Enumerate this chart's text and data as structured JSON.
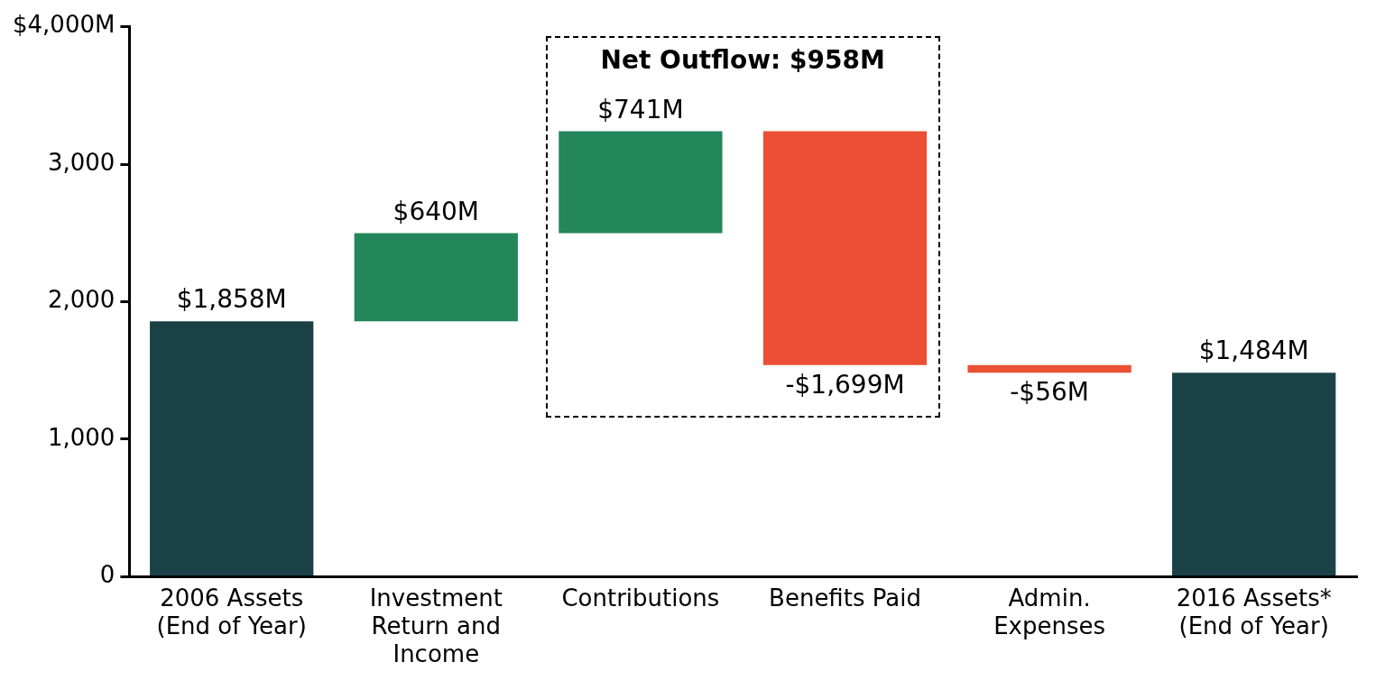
{
  "chart_data": {
    "type": "bar",
    "categories": [
      "2006 Assets (End of Year)",
      "Investment Return and Income",
      "Contributions",
      "Benefits Paid",
      "Admin. Expenses",
      "2016 Assets* (End of Year)"
    ],
    "values": [
      1858,
      640,
      741,
      -1699,
      -56,
      1484
    ],
    "base": [
      0,
      1858,
      2498,
      3239,
      1540,
      0
    ],
    "colors": [
      "#1a4246",
      "#24865b",
      "#24865b",
      "#eb5034",
      "#eb5034",
      "#1a4246"
    ],
    "value_labels": [
      "$1,858M",
      "$640M",
      "$741M",
      "-$1,699M",
      "-$56M",
      "$1,484M"
    ],
    "ylim": [
      0,
      4000
    ],
    "yticks": [
      0,
      {
        "value": 1000,
        "label": "1,000"
      },
      {
        "value": 2000,
        "label": "2,000"
      },
      {
        "value": 3000,
        "label": "3,000"
      },
      {
        "value": 4000,
        "label": "$4,000M"
      }
    ],
    "annotations": [
      "Net Outflow: $958M"
    ],
    "grid": false,
    "legend": false
  }
}
